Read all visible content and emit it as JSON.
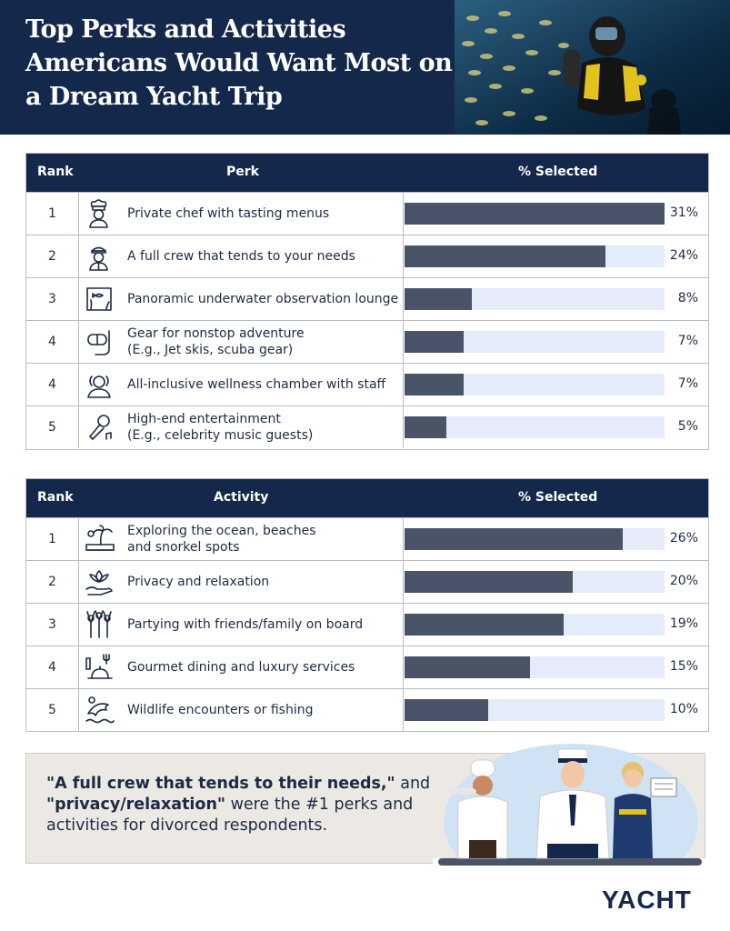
{
  "header": {
    "title": "Top Perks and Activities Americans Would Want Most on a Dream Yacht Trip"
  },
  "perks_table": {
    "headers": {
      "rank": "Rank",
      "item": "Perk",
      "pct": "% Selected"
    },
    "rows": [
      {
        "rank": "1",
        "line1": "Private chef with tasting menus",
        "line2": "",
        "pct": "31%",
        "icon": "chef-icon"
      },
      {
        "rank": "2",
        "line1": "A full crew that tends to your needs",
        "line2": "",
        "pct": "24%",
        "icon": "crew-member-icon"
      },
      {
        "rank": "3",
        "line1": "Panoramic underwater observation lounge",
        "line2": "",
        "pct": "8%",
        "icon": "aquarium-icon"
      },
      {
        "rank": "4",
        "line1": "Gear for nonstop adventure",
        "line2": "(E.g., Jet skis, scuba gear)",
        "pct": "7%",
        "icon": "snorkel-mask-icon"
      },
      {
        "rank": "4",
        "line1": "All-inclusive wellness chamber with staff",
        "line2": "",
        "pct": "7%",
        "icon": "spa-relax-icon"
      },
      {
        "rank": "5",
        "line1": "High-end entertainment",
        "line2": "(E.g., celebrity music guests)",
        "pct": "5%",
        "icon": "microphone-icon"
      }
    ]
  },
  "activities_table": {
    "headers": {
      "rank": "Rank",
      "item": "Activity",
      "pct": "% Selected"
    },
    "rows": [
      {
        "rank": "1",
        "line1": "Exploring the ocean, beaches",
        "line2": "and snorkel spots",
        "pct": "26%",
        "icon": "island-icon"
      },
      {
        "rank": "2",
        "line1": "Privacy and relaxation",
        "line2": "",
        "pct": "20%",
        "icon": "lotus-hand-icon"
      },
      {
        "rank": "3",
        "line1": "Partying with friends/family on board",
        "line2": "",
        "pct": "19%",
        "icon": "party-people-icon"
      },
      {
        "rank": "4",
        "line1": "Gourmet dining and luxury services",
        "line2": "",
        "pct": "15%",
        "icon": "dining-icon"
      },
      {
        "rank": "5",
        "line1": "Wildlife encounters or fishing",
        "line2": "",
        "pct": "10%",
        "icon": "dolphin-icon"
      }
    ]
  },
  "chart_data": [
    {
      "type": "bar",
      "categories": [
        "Private chef with tasting menus",
        "A full crew that tends to your needs",
        "Panoramic underwater observation lounge",
        "Gear for nonstop adventure (E.g., Jet skis, scuba gear)",
        "All-inclusive wellness chamber with staff",
        "High-end entertainment (E.g., celebrity music guests)"
      ],
      "values": [
        31,
        24,
        8,
        7,
        7,
        5
      ],
      "xlabel": "",
      "ylabel": "% Selected",
      "ylim": [
        0,
        31
      ]
    },
    {
      "type": "bar",
      "categories": [
        "Exploring the ocean, beaches and snorkel spots",
        "Privacy and relaxation",
        "Partying with friends/family on board",
        "Gourmet dining and luxury services",
        "Wildlife encounters or fishing"
      ],
      "values": [
        26,
        20,
        19,
        15,
        10
      ],
      "xlabel": "",
      "ylabel": "% Selected",
      "ylim": [
        0,
        31
      ]
    }
  ],
  "callout": {
    "quote1": "\"A full crew that tends to their needs,\"",
    "and": " and ",
    "quote2": "\"privacy/relaxation\"",
    "rest": " were the #1 perks and activities for divorced respondents."
  },
  "logo": "YACHT",
  "colors": {
    "navy": "#13284b",
    "bar": "#4a5468",
    "track": "#e3ecf8",
    "callout_bg": "#ece9e4"
  }
}
